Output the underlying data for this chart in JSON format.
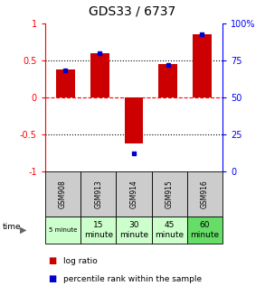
{
  "title": "GDS33 / 6737",
  "samples": [
    "GSM908",
    "GSM913",
    "GSM914",
    "GSM915",
    "GSM916"
  ],
  "time_labels": [
    "5 minute",
    "15\nminute",
    "30\nminute",
    "45\nminute",
    "60\nminute"
  ],
  "log_ratios": [
    0.38,
    0.6,
    -0.62,
    0.45,
    0.85
  ],
  "percentile_ranks": [
    68,
    80,
    12,
    72,
    93
  ],
  "bar_color": "#cc0000",
  "dot_color": "#0000cc",
  "ylim_left": [
    -1.0,
    1.0
  ],
  "ylim_right": [
    0,
    100
  ],
  "yticks_left": [
    -1,
    -0.5,
    0,
    0.5,
    1
  ],
  "ytick_labels_left": [
    "-1",
    "-0.5",
    "0",
    "0.5",
    "1"
  ],
  "yticks_right": [
    0,
    25,
    50,
    75,
    100
  ],
  "ytick_labels_right": [
    "0",
    "25",
    "50",
    "75",
    "100%"
  ],
  "hlines": [
    [
      -0.5,
      "dotted",
      "black"
    ],
    [
      0,
      "dashed",
      "red"
    ],
    [
      0.5,
      "dotted",
      "black"
    ]
  ],
  "time_row_colors": [
    "#ccffcc",
    "#ccffcc",
    "#ccffcc",
    "#ccffcc",
    "#66dd66"
  ],
  "sample_row_color": "#cccccc",
  "legend_items": [
    {
      "label": "log ratio",
      "color": "#cc0000"
    },
    {
      "label": "percentile rank within the sample",
      "color": "#0000cc"
    }
  ]
}
